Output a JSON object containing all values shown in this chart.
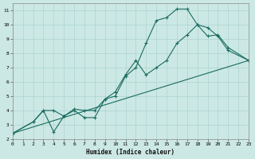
{
  "xlabel": "Humidex (Indice chaleur)",
  "xlim": [
    0,
    23
  ],
  "ylim": [
    2,
    11.5
  ],
  "xticks": [
    0,
    1,
    2,
    3,
    4,
    5,
    6,
    7,
    8,
    9,
    10,
    11,
    12,
    13,
    14,
    15,
    16,
    17,
    18,
    19,
    20,
    21,
    22,
    23
  ],
  "yticks": [
    2,
    3,
    4,
    5,
    6,
    7,
    8,
    9,
    10,
    11
  ],
  "bg_color": "#cce8e4",
  "grid_color": "#aad4cf",
  "line_color": "#1a6b60",
  "line1_x": [
    0,
    2,
    3,
    4,
    5,
    6,
    7,
    8,
    9,
    10,
    11,
    12,
    13,
    14,
    15,
    16,
    17,
    18,
    19,
    20,
    21,
    23
  ],
  "line1_y": [
    2.4,
    3.2,
    4.0,
    2.5,
    3.6,
    4.0,
    3.5,
    3.5,
    4.8,
    5.0,
    6.4,
    7.0,
    8.7,
    10.3,
    10.5,
    11.1,
    11.1,
    10.0,
    9.2,
    9.3,
    8.4,
    7.5
  ],
  "line2_x": [
    0,
    2,
    3,
    4,
    5,
    6,
    7,
    8,
    9,
    10,
    11,
    12,
    13,
    14,
    15,
    16,
    17,
    18,
    19,
    20,
    21,
    23
  ],
  "line2_y": [
    2.4,
    3.2,
    4.0,
    4.0,
    3.6,
    4.1,
    4.0,
    4.0,
    4.8,
    5.3,
    6.5,
    7.5,
    6.5,
    7.0,
    7.5,
    8.7,
    9.3,
    10.0,
    9.8,
    9.2,
    8.2,
    7.5
  ],
  "line3_x": [
    0,
    23
  ],
  "line3_y": [
    2.4,
    7.5
  ]
}
